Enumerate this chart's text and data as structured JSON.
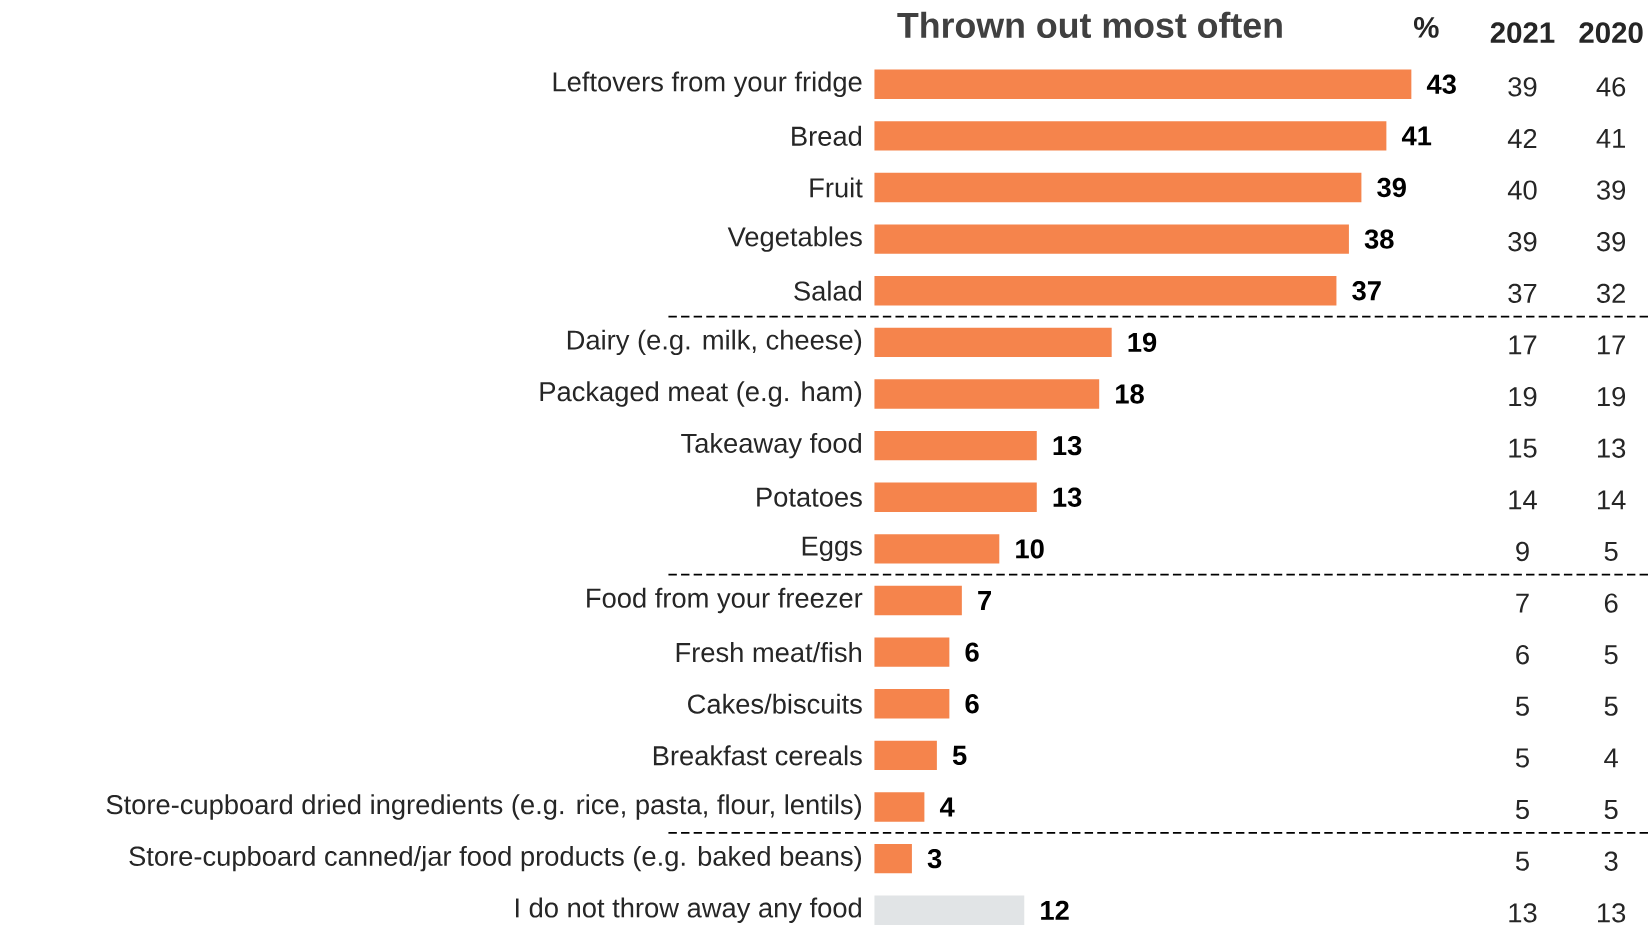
{
  "chart_data": {
    "type": "bar",
    "orientation": "horizontal",
    "title": "Thrown out most often",
    "categories": [
      "Leftovers from your fridge",
      "Bread",
      "Fruit",
      "Vegetables",
      "Salad",
      "Dairy (e.g. milk, cheese)",
      "Packaged meat (e.g. ham)",
      "Takeaway food",
      "Potatoes",
      "Eggs",
      "Food from your freezer",
      "Fresh meat/fish",
      "Cakes/biscuits",
      "Breakfast cereals",
      "Store-cupboard dried ingredients (e.g. rice, pasta, flour, lentils)",
      "Store-cupboard canned/jar food products (e.g. baked beans)",
      "I do not throw away any food"
    ],
    "values": [
      43,
      41,
      39,
      38,
      37,
      19,
      18,
      13,
      13,
      10,
      7,
      6,
      6,
      5,
      4,
      3,
      12
    ],
    "colors": [
      "#f5844c",
      "#f5844c",
      "#f5844c",
      "#f5844c",
      "#f5844c",
      "#f5844c",
      "#f5844c",
      "#f5844c",
      "#f5844c",
      "#f5844c",
      "#f5844c",
      "#f5844c",
      "#f5844c",
      "#f5844c",
      "#f5844c",
      "#f5844c",
      "#e1e4e6"
    ],
    "data_labels": true,
    "annotations": [
      "%",
      "2021",
      "2020",
      "39",
      "46",
      "42",
      "41",
      "40",
      "39",
      "39",
      "39",
      "37",
      "32",
      "17",
      "17",
      "19",
      "19",
      "15",
      "13",
      "14",
      "14",
      "9",
      "5",
      "7",
      "6",
      "6",
      "5",
      "5",
      "5",
      "5",
      "4",
      "5",
      "5",
      "5",
      "3",
      "13",
      "13"
    ]
  }
}
